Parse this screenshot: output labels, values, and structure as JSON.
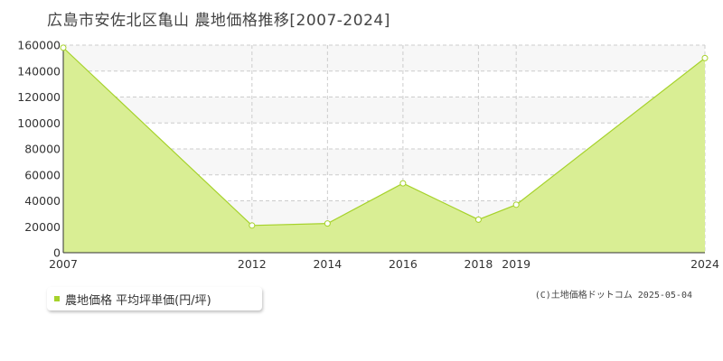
{
  "title": "広島市安佐北区亀山 農地価格推移[2007-2024]",
  "legend_label": "農地価格 平均坪単価(円/坪)",
  "copyright": "(C)土地価格ドットコム 2025-05-04",
  "colors": {
    "fill": "#d9ee94",
    "line": "#a6d22b",
    "band": "#f7f7f7",
    "grid": "#cccccc"
  },
  "chart_data": {
    "type": "area",
    "title": "広島市安佐北区亀山 農地価格推移[2007-2024]",
    "xlabel": "",
    "ylabel": "",
    "x": [
      2007,
      2012,
      2014,
      2016,
      2018,
      2019,
      2024
    ],
    "x_tick_labels": [
      "2007",
      "2012",
      "2014",
      "2016",
      "2018",
      "2019",
      "2024"
    ],
    "series": [
      {
        "name": "農地価格 平均坪単価(円/坪)",
        "values": [
          158000,
          21000,
          22500,
          53500,
          25500,
          37000,
          150000
        ]
      }
    ],
    "ylim": [
      0,
      160000
    ],
    "y_ticks": [
      0,
      20000,
      40000,
      60000,
      80000,
      100000,
      120000,
      140000,
      160000
    ],
    "grid": true,
    "legend_position": "bottom-left"
  }
}
